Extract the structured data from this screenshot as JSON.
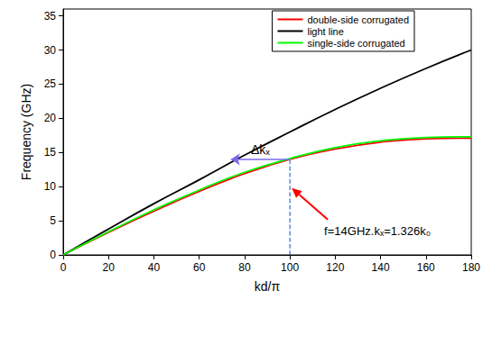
{
  "chart_data": {
    "type": "line",
    "x_label": "kd/π",
    "y_label": "Frequency (GHz)",
    "x": [
      0,
      20,
      40,
      60,
      80,
      100,
      120,
      140,
      160,
      180
    ],
    "series": [
      {
        "name": "double-side corrugated",
        "color": "#ff0000",
        "values": [
          0,
          3.3,
          6.4,
          9.3,
          11.9,
          14.0,
          15.5,
          16.5,
          17.0,
          17.1
        ]
      },
      {
        "name": "light line",
        "color": "#000000",
        "values": [
          0,
          3.8,
          7.5,
          11.0,
          14.6,
          18.0,
          21.3,
          24.4,
          27.3,
          30.0
        ]
      },
      {
        "name": "single-side corrugated",
        "color": "#00ff00",
        "values": [
          0,
          3.4,
          6.6,
          9.5,
          12.1,
          14.1,
          15.7,
          16.7,
          17.2,
          17.3
        ]
      }
    ],
    "xlim": [
      0,
      180
    ],
    "xticks": [
      0,
      20,
      40,
      60,
      80,
      100,
      120,
      140,
      160,
      180
    ],
    "ylim": [
      0,
      36
    ],
    "yticks": [
      0,
      5,
      10,
      15,
      20,
      25,
      30,
      35
    ],
    "grid": false,
    "legend": "upper right",
    "annotations": [
      {
        "text": "Δk̄ₓ",
        "x": [
          74,
          100
        ],
        "y": 14
      },
      {
        "text": "f=14GHz.kₓ=1.326k₀",
        "x": 100,
        "y": 14
      }
    ]
  }
}
